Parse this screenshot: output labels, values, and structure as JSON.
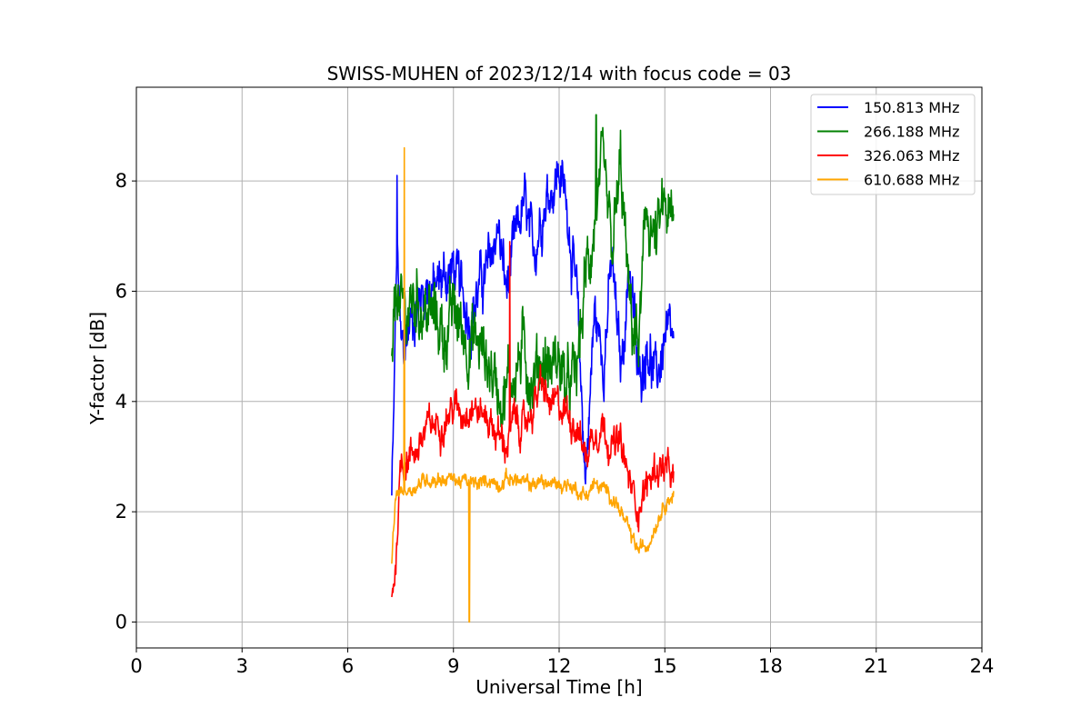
{
  "chart_data": {
    "type": "line",
    "title": "SWISS-MUHEN of 2023/12/14 with focus code = 03",
    "xlabel": "Universal Time [h]",
    "ylabel": "Y-factor [dB]",
    "xlim": [
      0,
      24
    ],
    "ylim": [
      -0.47,
      9.7
    ],
    "xticks": [
      "0",
      "3",
      "6",
      "9",
      "12",
      "15",
      "18",
      "21",
      "24"
    ],
    "yticks": [
      "0",
      "2",
      "4",
      "6",
      "8"
    ],
    "grid": true,
    "legend_position": "top-right",
    "series": [
      {
        "name": "150.813 MHz",
        "color": "#0000ff",
        "x": [
          7.25,
          7.3,
          7.4,
          7.5,
          7.6,
          7.75,
          8.0,
          8.25,
          8.5,
          8.75,
          9.0,
          9.25,
          9.5,
          9.75,
          10.0,
          10.25,
          10.5,
          10.75,
          11.0,
          11.25,
          11.5,
          11.75,
          12.0,
          12.25,
          12.5,
          12.75,
          13.0,
          13.25,
          13.5,
          13.75,
          14.0,
          14.25,
          14.5,
          14.75,
          15.0,
          15.25
        ],
        "y": [
          2.3,
          3.5,
          7.0,
          5.0,
          4.9,
          5.4,
          5.8,
          6.2,
          6.0,
          6.3,
          6.4,
          5.9,
          5.6,
          6.1,
          6.4,
          7.2,
          6.0,
          6.8,
          7.6,
          6.6,
          7.5,
          7.9,
          8.2,
          7.5,
          5.8,
          2.6,
          5.6,
          4.8,
          6.5,
          4.5,
          6.6,
          4.3,
          5.2,
          4.3,
          5.2,
          4.9
        ]
      },
      {
        "name": "266.188 MHz",
        "color": "#008000",
        "x": [
          7.25,
          7.4,
          7.5,
          7.75,
          8.0,
          8.25,
          8.5,
          8.75,
          9.0,
          9.25,
          9.5,
          9.75,
          10.0,
          10.25,
          10.5,
          10.75,
          11.0,
          11.25,
          11.5,
          11.75,
          12.0,
          12.25,
          12.5,
          12.75,
          13.0,
          13.25,
          13.5,
          13.75,
          14.0,
          14.25,
          14.5,
          14.75,
          15.0,
          15.25
        ],
        "y": [
          4.5,
          6.2,
          5.5,
          5.7,
          5.9,
          5.6,
          5.5,
          5.2,
          5.6,
          5.3,
          5.1,
          5.0,
          4.7,
          4.3,
          4.2,
          4.6,
          4.9,
          4.4,
          4.8,
          4.6,
          4.8,
          4.1,
          4.5,
          6.2,
          7.2,
          8.0,
          6.6,
          8.2,
          5.6,
          5.0,
          7.5,
          6.8,
          7.5,
          7.0
        ]
      },
      {
        "name": "326.063 MHz",
        "color": "#ff0000",
        "x": [
          7.25,
          7.35,
          7.5,
          7.75,
          8.0,
          8.25,
          8.5,
          8.75,
          9.0,
          9.25,
          9.5,
          9.75,
          10.0,
          10.25,
          10.5,
          10.75,
          11.0,
          11.25,
          11.5,
          11.75,
          12.0,
          12.25,
          12.5,
          12.75,
          13.0,
          13.25,
          13.5,
          13.75,
          14.0,
          14.25,
          14.5,
          14.75,
          15.0,
          15.25
        ],
        "y": [
          0.5,
          1.0,
          2.9,
          3.0,
          3.2,
          3.5,
          3.6,
          3.7,
          3.9,
          3.8,
          4.0,
          3.8,
          3.7,
          3.4,
          3.2,
          3.7,
          3.5,
          3.9,
          4.3,
          3.9,
          3.9,
          3.8,
          3.6,
          3.0,
          3.5,
          3.6,
          3.2,
          3.2,
          2.5,
          2.1,
          2.5,
          2.8,
          2.8,
          2.5
        ]
      },
      {
        "name": "610.688 MHz",
        "color": "#ffa500",
        "x": [
          7.25,
          7.35,
          7.5,
          7.75,
          8.0,
          8.25,
          8.5,
          8.75,
          9.0,
          9.25,
          9.5,
          9.75,
          10.0,
          10.25,
          10.5,
          10.75,
          11.0,
          11.25,
          11.5,
          11.75,
          12.0,
          12.25,
          12.5,
          12.75,
          13.0,
          13.25,
          13.5,
          13.75,
          14.0,
          14.25,
          14.5,
          14.75,
          15.0,
          15.25
        ],
        "y": [
          1.1,
          2.2,
          2.4,
          2.4,
          2.5,
          2.6,
          2.6,
          2.6,
          2.6,
          2.55,
          2.5,
          2.5,
          2.6,
          2.5,
          2.6,
          2.6,
          2.5,
          2.5,
          2.55,
          2.5,
          2.5,
          2.5,
          2.4,
          2.3,
          2.5,
          2.4,
          2.3,
          2.0,
          1.6,
          1.3,
          1.4,
          1.8,
          2.2,
          2.3
        ]
      }
    ],
    "annotations": [
      {
        "series": "610.688 MHz",
        "x": 7.6,
        "y": 8.6,
        "kind": "spike"
      },
      {
        "series": "610.688 MHz",
        "x": 9.45,
        "y": 0.0,
        "kind": "dropout"
      },
      {
        "series": "150.813 MHz",
        "x": 7.4,
        "y": 8.1,
        "kind": "spike"
      },
      {
        "series": "266.188 MHz",
        "x": 13.05,
        "y": 9.2,
        "kind": "peak"
      },
      {
        "series": "326.063 MHz",
        "x": 10.6,
        "y": 6.9,
        "kind": "spike"
      }
    ]
  }
}
